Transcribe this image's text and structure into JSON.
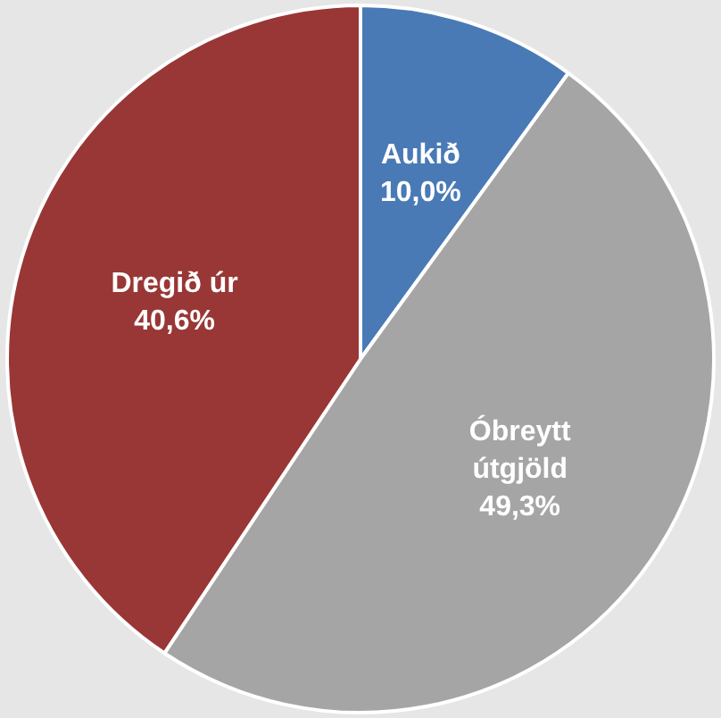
{
  "chart_data": {
    "type": "pie",
    "categories": [
      "Aukið",
      "Óbreytt útgjöld",
      "Dregið úr"
    ],
    "values": [
      10.0,
      49.3,
      40.6
    ],
    "colors": [
      "#4a7ab5",
      "#a5a5a5",
      "#983735"
    ],
    "value_labels": [
      "10,0%",
      "49,3%",
      "40,6%"
    ],
    "legend": false
  }
}
